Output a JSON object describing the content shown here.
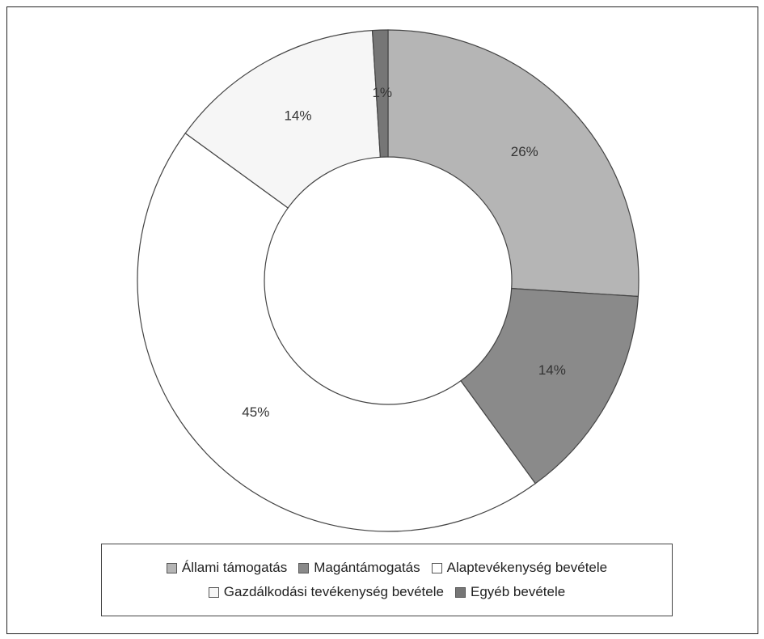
{
  "chart_data": {
    "type": "donut",
    "categories": [
      "Állami támogatás",
      "Magántámogatás",
      "Alaptevékenység bevétele",
      "Gazdálkodási tevékenység bevétele",
      "Egyéb bevétele"
    ],
    "values": [
      26,
      14,
      45,
      14,
      1
    ],
    "value_labels": [
      "26%",
      "14%",
      "45%",
      "14%",
      "1%"
    ],
    "colors": [
      "#b5b5b5",
      "#8a8a8a",
      "#ffffff",
      "#f6f6f6",
      "#767676"
    ],
    "legend": "bottom"
  }
}
